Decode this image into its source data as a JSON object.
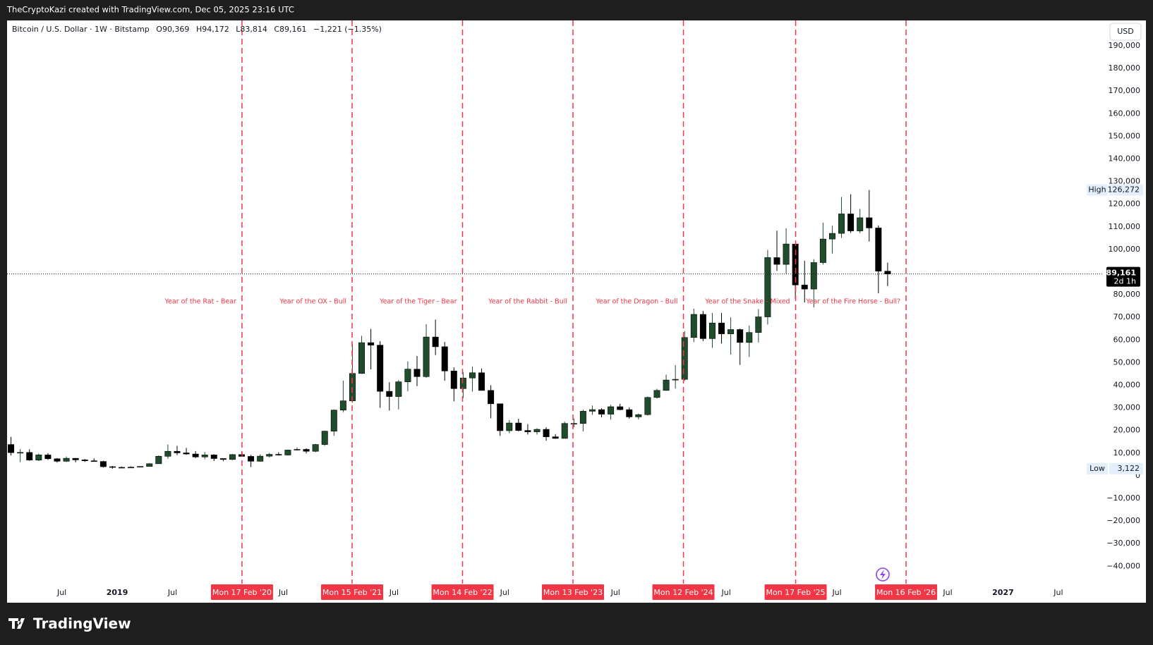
{
  "header": "TheCryptoKazi created with TradingView.com, Dec 05, 2025 23:16 UTC",
  "footer": "TradingView",
  "chart_data": {
    "type": "candlestick",
    "title": "Bitcoin / U.S. Dollar · 1W · Bitstamp",
    "legend": [
      "O90,369",
      "H94,172",
      "L83,814",
      "C89,161",
      "−1,221 (−1.35%)"
    ],
    "currency": "USD",
    "up_color": "#1f4d2b",
    "down_color": "#000000",
    "marker_color": "#f23645",
    "grid": false,
    "x": [
      "2018-01",
      "2018-02",
      "2018-03",
      "2018-04",
      "2018-05",
      "2018-06",
      "2018-07",
      "2018-08",
      "2018-09",
      "2018-10",
      "2018-11",
      "2018-12",
      "2019-01",
      "2019-02",
      "2019-03",
      "2019-04",
      "2019-05",
      "2019-06",
      "2019-07",
      "2019-08",
      "2019-09",
      "2019-10",
      "2019-11",
      "2019-12",
      "2020-01",
      "2020-02",
      "2020-03",
      "2020-04",
      "2020-05",
      "2020-06",
      "2020-07",
      "2020-08",
      "2020-09",
      "2020-10",
      "2020-11",
      "2020-12",
      "2021-01",
      "2021-02",
      "2021-03",
      "2021-04",
      "2021-05",
      "2021-06",
      "2021-07",
      "2021-08",
      "2021-09",
      "2021-10",
      "2021-11",
      "2021-12",
      "2022-01",
      "2022-02",
      "2022-03",
      "2022-04",
      "2022-05",
      "2022-06",
      "2022-07",
      "2022-08",
      "2022-09",
      "2022-10",
      "2022-11",
      "2022-12",
      "2023-01",
      "2023-02",
      "2023-03",
      "2023-04",
      "2023-05",
      "2023-06",
      "2023-07",
      "2023-08",
      "2023-09",
      "2023-10",
      "2023-11",
      "2023-12",
      "2024-01",
      "2024-02",
      "2024-03",
      "2024-04",
      "2024-05",
      "2024-06",
      "2024-07",
      "2024-08",
      "2024-09",
      "2024-10",
      "2024-11",
      "2024-12",
      "2025-01",
      "2025-02",
      "2025-03",
      "2025-04",
      "2025-05",
      "2025-06",
      "2025-07",
      "2025-08",
      "2025-09",
      "2025-10",
      "2025-11",
      "2025-12"
    ],
    "open": [
      13800,
      10200,
      10300,
      6900,
      9200,
      7500,
      6400,
      7700,
      7000,
      6600,
      6300,
      4000,
      3700,
      3450,
      3800,
      4100,
      5300,
      8600,
      10800,
      10100,
      9600,
      8300,
      9200,
      7600,
      7200,
      9350,
      8550,
      6400,
      8650,
      9450,
      9150,
      11350,
      11650,
      10800,
      13800,
      19700,
      29000,
      33100,
      45200,
      58800,
      57700,
      37300,
      35000,
      41500,
      47100,
      43800,
      61300,
      57000,
      46300,
      38500,
      43200,
      45500,
      37700,
      31800,
      19900,
      23300,
      20000,
      19400,
      20500,
      17200,
      16500,
      23100,
      23100,
      28500,
      29200,
      27200,
      30500,
      29200,
      26000,
      27000,
      34600,
      37700,
      42300,
      42600,
      61100,
      71300,
      60600,
      67500,
      62700,
      64600,
      58900,
      63300,
      70200,
      96400,
      93400,
      102400,
      84300,
      82500,
      94200,
      104600,
      107100,
      115700,
      108200,
      114000,
      109500,
      90400
    ],
    "high": [
      17200,
      11800,
      11700,
      9800,
      10000,
      7800,
      8500,
      7800,
      7400,
      7700,
      6600,
      4300,
      4100,
      4200,
      4100,
      5600,
      9000,
      13800,
      13200,
      12300,
      10900,
      10500,
      9500,
      7700,
      9600,
      10500,
      9200,
      9450,
      10100,
      10400,
      11450,
      12500,
      12100,
      14100,
      19900,
      29300,
      42000,
      58400,
      61800,
      64900,
      59500,
      41300,
      42300,
      50500,
      52900,
      67000,
      69000,
      59100,
      47900,
      45800,
      48200,
      47400,
      40000,
      31900,
      24600,
      25200,
      22800,
      21000,
      21400,
      18400,
      23900,
      25300,
      29200,
      31000,
      29800,
      31400,
      31800,
      30200,
      27500,
      35000,
      38400,
      44700,
      48900,
      63900,
      73800,
      72800,
      71900,
      72000,
      70000,
      65000,
      66400,
      73600,
      99800,
      108300,
      109400,
      102500,
      95000,
      95700,
      111900,
      110500,
      123200,
      124400,
      117900,
      126272,
      110600,
      94172
    ],
    "low": [
      9000,
      6000,
      6600,
      6500,
      7000,
      5800,
      6100,
      5900,
      6100,
      6200,
      3600,
      3122,
      3400,
      3400,
      3700,
      4100,
      5300,
      7500,
      9100,
      9300,
      7800,
      7300,
      6500,
      6400,
      6900,
      8400,
      3850,
      6200,
      8100,
      8900,
      8950,
      11100,
      9850,
      10400,
      13200,
      17600,
      28100,
      32300,
      45000,
      47000,
      30000,
      28800,
      29300,
      37300,
      39600,
      43300,
      53300,
      42000,
      32900,
      34300,
      37200,
      37600,
      25400,
      17600,
      18800,
      19600,
      18200,
      18200,
      15500,
      16300,
      16500,
      21400,
      19600,
      26900,
      25800,
      24800,
      28900,
      25200,
      24900,
      26600,
      34100,
      37600,
      38500,
      41900,
      59000,
      59500,
      56500,
      58400,
      53500,
      49000,
      52500,
      58900,
      66800,
      90500,
      89200,
      78100,
      76600,
      74400,
      93300,
      98200,
      105100,
      107300,
      107200,
      103500,
      80600,
      83814
    ],
    "close": [
      10200,
      10300,
      6900,
      9200,
      7500,
      6400,
      7700,
      7000,
      6600,
      6300,
      4000,
      3700,
      3450,
      3800,
      4100,
      5300,
      8600,
      10800,
      10100,
      9600,
      8300,
      9200,
      7600,
      7200,
      9350,
      8550,
      6400,
      8650,
      9450,
      9150,
      11350,
      11650,
      10800,
      13800,
      19700,
      29000,
      33100,
      45200,
      58800,
      57700,
      37300,
      35000,
      41500,
      47100,
      43800,
      61300,
      57000,
      46300,
      38500,
      43200,
      45500,
      37700,
      31800,
      19900,
      23300,
      20000,
      19400,
      20500,
      17200,
      16500,
      23100,
      23100,
      28500,
      29200,
      27200,
      30500,
      29200,
      26000,
      27000,
      34600,
      37700,
      42300,
      42600,
      61100,
      71300,
      60600,
      67500,
      62700,
      64600,
      58900,
      63300,
      70200,
      96400,
      93400,
      102400,
      84300,
      82500,
      94200,
      104600,
      107100,
      115700,
      108200,
      114000,
      109500,
      90400,
      89161
    ],
    "xlim": [
      "2018-01-03",
      "2027-11-26"
    ],
    "xticks": [
      {
        "value": "2018-07-01",
        "label": "Jul"
      },
      {
        "value": "2019-01-01",
        "label": "2019"
      },
      {
        "value": "2019-07-01",
        "label": "Jul"
      },
      {
        "value": "2020-07-01",
        "label": "Jul"
      },
      {
        "value": "2021-07-01",
        "label": "Jul"
      },
      {
        "value": "2022-07-01",
        "label": "Jul"
      },
      {
        "value": "2023-07-01",
        "label": "Jul"
      },
      {
        "value": "2024-07-01",
        "label": "Jul"
      },
      {
        "value": "2025-07-01",
        "label": "Jul"
      },
      {
        "value": "2026-07-01",
        "label": "Jul"
      },
      {
        "value": "2027-01-01",
        "label": "2027"
      },
      {
        "value": "2027-07-01",
        "label": "Jul"
      }
    ],
    "markers": [
      {
        "value": "2020-02-17",
        "label": "Mon 17 Feb '20"
      },
      {
        "value": "2021-02-15",
        "label": "Mon 15 Feb '21"
      },
      {
        "value": "2022-02-14",
        "label": "Mon 14 Feb '22"
      },
      {
        "value": "2023-02-13",
        "label": "Mon 13 Feb '23"
      },
      {
        "value": "2024-02-12",
        "label": "Mon 12 Feb '24"
      },
      {
        "value": "2025-02-17",
        "label": "Mon 17 Feb '25"
      },
      {
        "value": "2026-02-16",
        "label": "Mon 16 Feb '26"
      }
    ],
    "annotations": [
      "Year of the Rat - Bear",
      "Year of the OX - Bull",
      "Year of the Tiger - Bear",
      "Year of the Rabbit - Bull",
      "Year of the Dragon - Bull",
      "Year of the Snake - Mixed",
      "Year of the Fire Horse - Bull?"
    ],
    "ylim": [
      -47700,
      201200
    ],
    "yticks": [
      {
        "value": -40000,
        "label": "−40,000"
      },
      {
        "value": -30000,
        "label": "−30,000"
      },
      {
        "value": -20000,
        "label": "−20,000"
      },
      {
        "value": -10000,
        "label": "−10,000"
      },
      0,
      {
        "value": 10000,
        "label": "10,000"
      },
      {
        "value": 20000,
        "label": "20,000"
      },
      {
        "value": 30000,
        "label": "30,000"
      },
      {
        "value": 40000,
        "label": "40,000"
      },
      {
        "value": 50000,
        "label": "50,000"
      },
      {
        "value": 60000,
        "label": "60,000"
      },
      {
        "value": 70000,
        "label": "70,000"
      },
      {
        "value": 80000,
        "label": "80,000"
      },
      {
        "value": 90000,
        "label": "90,000"
      },
      {
        "value": 100000,
        "label": "100,000"
      },
      {
        "value": 110000,
        "label": "110,000"
      },
      {
        "value": 120000,
        "label": "120,000"
      },
      {
        "value": 130000,
        "label": "130,000"
      },
      {
        "value": 140000,
        "label": "140,000"
      },
      {
        "value": 150000,
        "label": "150,000"
      },
      {
        "value": 160000,
        "label": "160,000"
      },
      {
        "value": 170000,
        "label": "170,000"
      },
      {
        "value": 180000,
        "label": "180,000"
      },
      {
        "value": 190000,
        "label": "190,000"
      }
    ],
    "last_price": {
      "value": 89161,
      "label": "89,161",
      "countdown": "2d 1h"
    },
    "high_mark": {
      "text": "High",
      "value": 126272,
      "label": "126,272"
    },
    "low_mark": {
      "text": "Low",
      "value": 3122,
      "label": "3,122"
    }
  }
}
